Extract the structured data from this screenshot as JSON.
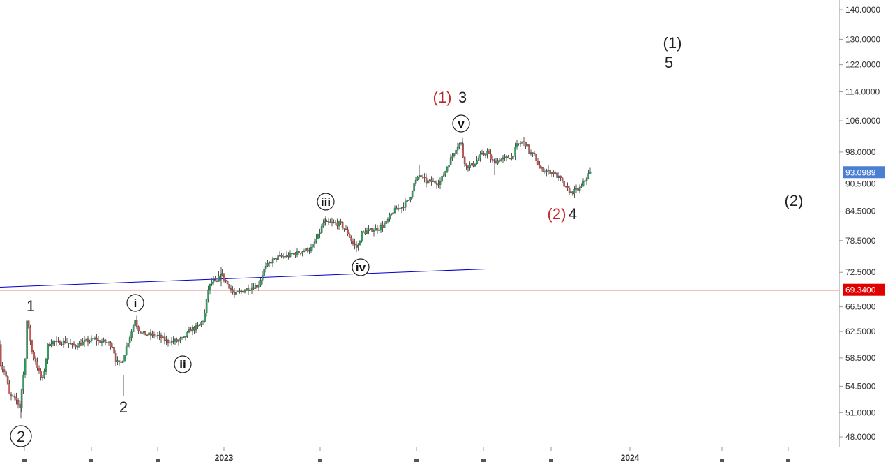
{
  "chart_data": {
    "type": "candlestick",
    "title": "",
    "xlabel": "",
    "ylabel": "",
    "ylim": [
      46.5,
      142.0
    ],
    "y_scale": "log",
    "yticks": [
      "48.0000",
      "51.0000",
      "54.5000",
      "58.5000",
      "62.5000",
      "66.5000",
      "72.5000",
      "78.5000",
      "84.5000",
      "90.5000",
      "98.0000",
      "106.0000",
      "114.0000",
      "122.0000",
      "130.0000",
      "140.0000"
    ],
    "xticks": [
      "2023",
      "2024"
    ],
    "up_color": "#26a65b",
    "down_color": "#d9534f",
    "last_price": {
      "label": "93.0989",
      "value": 93.0989,
      "color": "#4a7fd4"
    },
    "horizontal_line": {
      "label": "69.3400",
      "value": 69.34,
      "color": "#e00000"
    },
    "trend_line": {
      "color": "#0000cc"
    },
    "price_path": [
      {
        "t": 0,
        "v": 60.5
      },
      {
        "t": 3,
        "v": 57.2
      },
      {
        "t": 7,
        "v": 56.8
      },
      {
        "t": 11,
        "v": 55.5
      },
      {
        "t": 15,
        "v": 53.3
      },
      {
        "t": 20,
        "v": 52.9
      },
      {
        "t": 25,
        "v": 52.6
      },
      {
        "t": 30,
        "v": 51.7
      },
      {
        "t": 33,
        "v": 54.5
      },
      {
        "t": 37,
        "v": 57.5
      },
      {
        "t": 40,
        "v": 64.2
      },
      {
        "t": 44,
        "v": 62.0
      },
      {
        "t": 48,
        "v": 59.0
      },
      {
        "t": 52,
        "v": 58.2
      },
      {
        "t": 57,
        "v": 56.5
      },
      {
        "t": 62,
        "v": 55.2
      },
      {
        "t": 66,
        "v": 57.2
      },
      {
        "t": 70,
        "v": 60.3
      },
      {
        "t": 76,
        "v": 61.0
      },
      {
        "t": 85,
        "v": 60.7
      },
      {
        "t": 95,
        "v": 61.0
      },
      {
        "t": 105,
        "v": 60.3
      },
      {
        "t": 115,
        "v": 60.5
      },
      {
        "t": 125,
        "v": 61.0
      },
      {
        "t": 135,
        "v": 61.3
      },
      {
        "t": 145,
        "v": 61.0
      },
      {
        "t": 155,
        "v": 60.8
      },
      {
        "t": 163,
        "v": 60.3
      },
      {
        "t": 168,
        "v": 58.0
      },
      {
        "t": 174,
        "v": 57.5
      },
      {
        "t": 178,
        "v": 58.5
      },
      {
        "t": 185,
        "v": 61.0
      },
      {
        "t": 190,
        "v": 62.5
      },
      {
        "t": 195,
        "v": 64.5
      },
      {
        "t": 199,
        "v": 63.0
      },
      {
        "t": 205,
        "v": 62.2
      },
      {
        "t": 215,
        "v": 62.0
      },
      {
        "t": 228,
        "v": 61.8
      },
      {
        "t": 240,
        "v": 61.0
      },
      {
        "t": 255,
        "v": 61.0
      },
      {
        "t": 265,
        "v": 61.4
      },
      {
        "t": 275,
        "v": 62.8
      },
      {
        "t": 285,
        "v": 63.2
      },
      {
        "t": 294,
        "v": 64.5
      },
      {
        "t": 300,
        "v": 69.5
      },
      {
        "t": 306,
        "v": 71.0
      },
      {
        "t": 312,
        "v": 70.5
      },
      {
        "t": 318,
        "v": 72.5
      },
      {
        "t": 324,
        "v": 71.0
      },
      {
        "t": 330,
        "v": 70.0
      },
      {
        "t": 337,
        "v": 68.5
      },
      {
        "t": 345,
        "v": 69.0
      },
      {
        "t": 355,
        "v": 69.5
      },
      {
        "t": 365,
        "v": 70.0
      },
      {
        "t": 372,
        "v": 70.2
      },
      {
        "t": 380,
        "v": 73.0
      },
      {
        "t": 390,
        "v": 74.5
      },
      {
        "t": 400,
        "v": 75.3
      },
      {
        "t": 412,
        "v": 75.5
      },
      {
        "t": 424,
        "v": 76.0
      },
      {
        "t": 436,
        "v": 76.5
      },
      {
        "t": 448,
        "v": 77.0
      },
      {
        "t": 458,
        "v": 79.5
      },
      {
        "t": 465,
        "v": 82.0
      },
      {
        "t": 478,
        "v": 82.0
      },
      {
        "t": 490,
        "v": 81.8
      },
      {
        "t": 500,
        "v": 80.0
      },
      {
        "t": 507,
        "v": 78.0
      },
      {
        "t": 514,
        "v": 77.0
      },
      {
        "t": 520,
        "v": 80.0
      },
      {
        "t": 532,
        "v": 80.5
      },
      {
        "t": 545,
        "v": 81.0
      },
      {
        "t": 555,
        "v": 82.0
      },
      {
        "t": 565,
        "v": 84.5
      },
      {
        "t": 578,
        "v": 85.5
      },
      {
        "t": 588,
        "v": 87.0
      },
      {
        "t": 595,
        "v": 90.5
      },
      {
        "t": 603,
        "v": 92.5
      },
      {
        "t": 612,
        "v": 91.0
      },
      {
        "t": 622,
        "v": 91.0
      },
      {
        "t": 632,
        "v": 90.8
      },
      {
        "t": 640,
        "v": 93.5
      },
      {
        "t": 648,
        "v": 96.5
      },
      {
        "t": 655,
        "v": 99.0
      },
      {
        "t": 662,
        "v": 100.5
      },
      {
        "t": 665,
        "v": 97.0
      },
      {
        "t": 670,
        "v": 94.5
      },
      {
        "t": 680,
        "v": 95.0
      },
      {
        "t": 690,
        "v": 97.0
      },
      {
        "t": 700,
        "v": 98.0
      },
      {
        "t": 708,
        "v": 95.5
      },
      {
        "t": 718,
        "v": 96.2
      },
      {
        "t": 728,
        "v": 96.5
      },
      {
        "t": 736,
        "v": 97.0
      },
      {
        "t": 742,
        "v": 99.5
      },
      {
        "t": 750,
        "v": 100.5
      },
      {
        "t": 756,
        "v": 100.0
      },
      {
        "t": 760,
        "v": 98.0
      },
      {
        "t": 768,
        "v": 97.0
      },
      {
        "t": 775,
        "v": 94.0
      },
      {
        "t": 785,
        "v": 93.5
      },
      {
        "t": 795,
        "v": 93.0
      },
      {
        "t": 805,
        "v": 91.5
      },
      {
        "t": 812,
        "v": 89.5
      },
      {
        "t": 820,
        "v": 88.5
      },
      {
        "t": 828,
        "v": 89.0
      },
      {
        "t": 835,
        "v": 89.8
      },
      {
        "t": 842,
        "v": 92.0
      },
      {
        "t": 847,
        "v": 93.0989
      }
    ],
    "annotations": [
      {
        "text": "1",
        "style": "plain"
      },
      {
        "text": "2",
        "style": "plain"
      },
      {
        "text": "2",
        "style": "circled"
      },
      {
        "text": "i",
        "style": "circled"
      },
      {
        "text": "ii",
        "style": "circled"
      },
      {
        "text": "iii",
        "style": "circled"
      },
      {
        "text": "iv",
        "style": "circled"
      },
      {
        "text": "v",
        "style": "circled"
      },
      {
        "text": "(1)",
        "style": "red"
      },
      {
        "text": "3",
        "style": "plain"
      },
      {
        "text": "(2)",
        "style": "red"
      },
      {
        "text": "4",
        "style": "plain"
      },
      {
        "text": "(1)",
        "style": "plain"
      },
      {
        "text": "5",
        "style": "plain"
      },
      {
        "text": "(2)",
        "style": "plain"
      }
    ]
  }
}
